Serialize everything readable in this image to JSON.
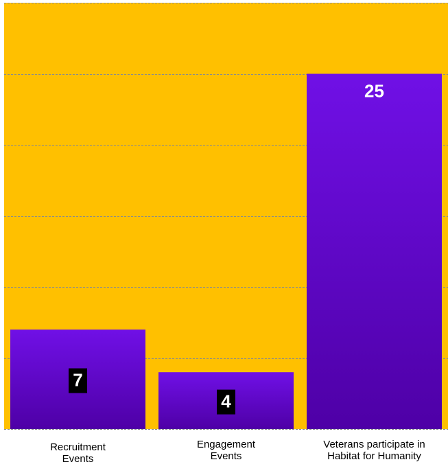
{
  "chart_data": {
    "type": "bar",
    "categories": [
      "Recruitment Events",
      "Engagement Events",
      "Veterans participate in Habitat for Humanity"
    ],
    "category_lines": [
      [
        "Recruitment",
        "Events"
      ],
      [
        "Engagement",
        "Events"
      ],
      [
        "Veterans participate in",
        "Habitat for Humanity"
      ]
    ],
    "values": [
      7,
      4,
      25
    ],
    "data_labels": [
      "7",
      "4",
      "25"
    ],
    "ylim": [
      0,
      30
    ],
    "ytick_step": 5,
    "grid": true,
    "title": "",
    "xlabel": "",
    "ylabel": ""
  },
  "colors": {
    "plot_background": "#FFC000",
    "bar_top": "#7010E6",
    "bar_bottom": "#4E00A6",
    "gridline": "#8A8A8A",
    "label_box": "#000000",
    "label_text": "#FFFFFF",
    "category_text": "#000000",
    "page_background": "#FFFFFF"
  }
}
